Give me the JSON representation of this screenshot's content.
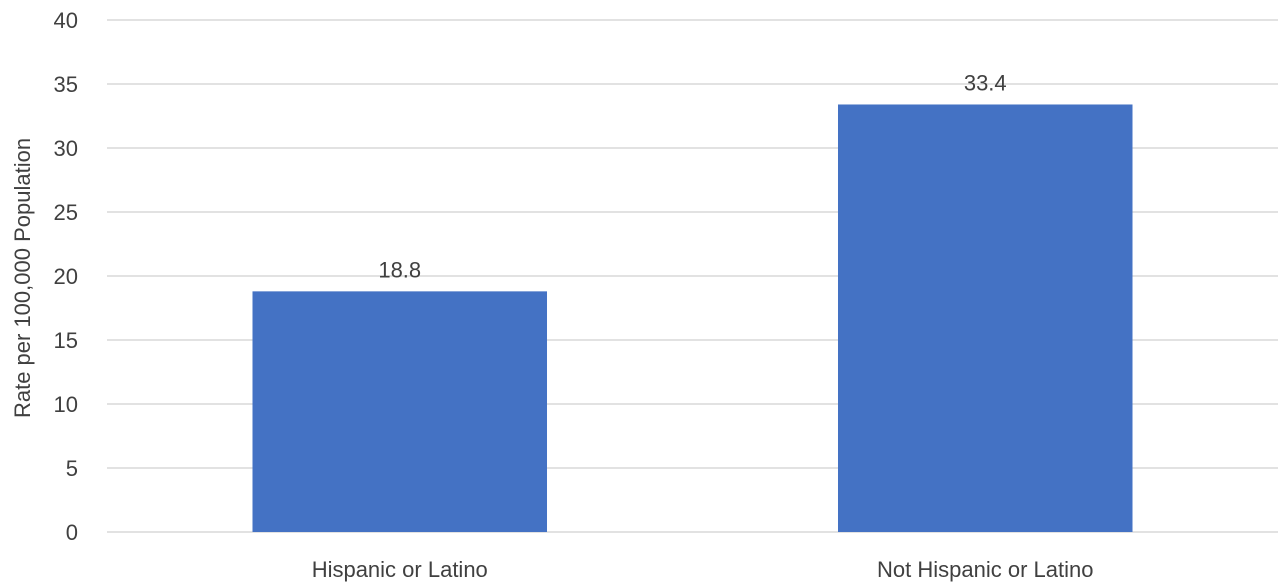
{
  "chart_data": {
    "type": "bar",
    "title": "",
    "xlabel": "",
    "ylabel": "Rate per 100,000 Population",
    "categories": [
      "Hispanic or Latino",
      "Not Hispanic or Latino"
    ],
    "values": [
      18.8,
      33.4
    ],
    "data_labels": [
      "18.8",
      "33.4"
    ],
    "ylim": [
      0,
      40
    ],
    "yticks": [
      0,
      5,
      10,
      15,
      20,
      25,
      30,
      35,
      40
    ],
    "grid": true,
    "legend": "none",
    "bar_color": "#4472c4"
  }
}
